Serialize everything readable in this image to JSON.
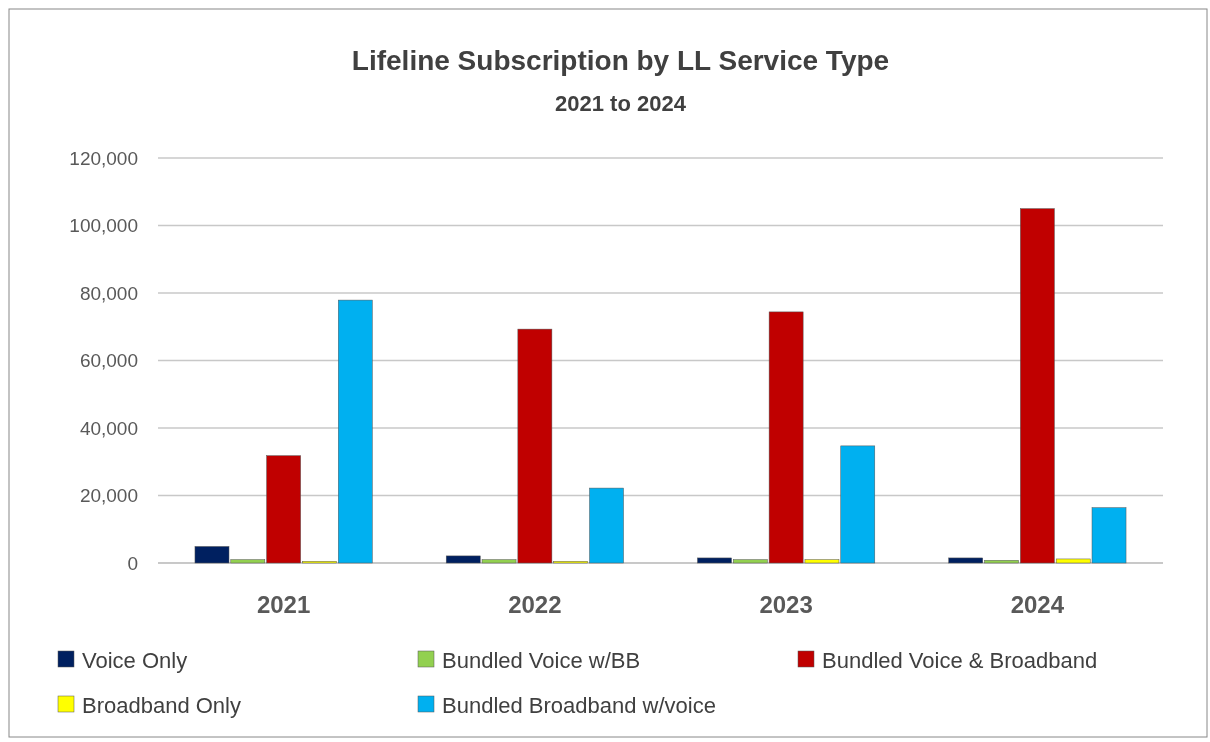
{
  "chart_data": {
    "type": "bar",
    "title": "Lifeline Subscription by LL Service Type",
    "subtitle": "2021 to 2024",
    "categories": [
      "2021",
      "2022",
      "2023",
      "2024"
    ],
    "series": [
      {
        "name": "Voice Only",
        "color": "#002060",
        "values": [
          4900,
          2100,
          1500,
          1500
        ]
      },
      {
        "name": "Bundled Voice w/BB",
        "color": "#92d050",
        "values": [
          1000,
          1000,
          1000,
          800
        ]
      },
      {
        "name": "Bundled Voice & Broadband",
        "color": "#c00000",
        "values": [
          31800,
          69300,
          74400,
          105000
        ]
      },
      {
        "name": "Broadband Only",
        "color": "#ffff00",
        "values": [
          500,
          500,
          1000,
          1200
        ]
      },
      {
        "name": "Bundled Broadband w/voice",
        "color": "#00b0f0",
        "values": [
          77900,
          22200,
          34700,
          16400
        ]
      }
    ],
    "ylim": [
      0,
      120000
    ],
    "yticks": [
      {
        "value": 0,
        "label": "0"
      },
      {
        "value": 20000,
        "label": "20,000"
      },
      {
        "value": 40000,
        "label": "40,000"
      },
      {
        "value": 60000,
        "label": "60,000"
      },
      {
        "value": 80000,
        "label": "80,000"
      },
      {
        "value": 100000,
        "label": "100,000"
      },
      {
        "value": 120000,
        "label": "120,000"
      }
    ],
    "grid": "y",
    "legend": "bottom"
  }
}
